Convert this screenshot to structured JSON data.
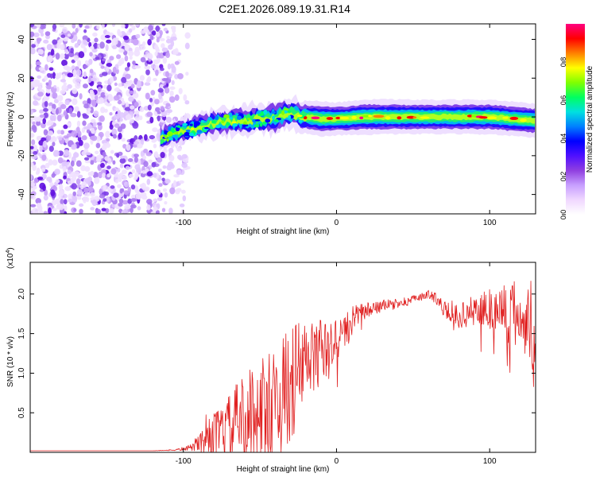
{
  "title": "C2E1.2026.089.19.31.R14",
  "chart_data": [
    {
      "type": "heatmap",
      "name": "spectrogram",
      "xlabel": "Height of straight line (km)",
      "ylabel": "Frequency (Hz)",
      "xlim": [
        -200,
        130
      ],
      "ylim": [
        -50,
        48
      ],
      "xticks": [
        -100,
        0,
        100
      ],
      "xtick_labels": [
        "-100",
        "0",
        "100"
      ],
      "yticks": [
        40,
        20,
        0,
        -20,
        -40
      ],
      "ytick_labels": [
        "40",
        "20",
        "0",
        "-20",
        "-40"
      ],
      "noise_region": [
        -200,
        -97
      ],
      "signal_track": {
        "x": [
          -115,
          -100,
          -80,
          -60,
          -40,
          -30,
          -20,
          -10,
          0,
          20,
          60,
          100,
          130
        ],
        "frequency": [
          -11,
          -7,
          -3,
          -2,
          0,
          2,
          0,
          -1,
          -1,
          0,
          0,
          0,
          -2
        ],
        "relative_amplitude": [
          0.35,
          0.4,
          0.45,
          0.5,
          0.55,
          0.6,
          0.75,
          0.85,
          0.75,
          0.85,
          0.8,
          0.82,
          0.8
        ]
      },
      "colorbar": {
        "label": "Normalized spectral amplitude",
        "range": [
          0,
          1
        ],
        "ticks": [
          0.0,
          0.2,
          0.4,
          0.6,
          0.8
        ],
        "tick_labels": [
          "0.0",
          "0.2",
          "0.4",
          "0.6",
          "0.8"
        ],
        "colors": [
          "#ffffff",
          "#f0d8ff",
          "#c8a0ff",
          "#9040e0",
          "#5010ff",
          "#0000ff",
          "#0080ff",
          "#00e0e0",
          "#00ff60",
          "#80ff00",
          "#ffff00",
          "#ff8000",
          "#ff0000",
          "#ff0080"
        ]
      }
    },
    {
      "type": "line",
      "name": "snr",
      "xlabel": "Height of straight line (km)",
      "ylabel": "SNR (10 * v/v)",
      "scale_label_base": "(x10",
      "scale_label_exp": "4",
      "scale_label_close": ")",
      "xlim": [
        -200,
        130
      ],
      "ylim": [
        0,
        2.4
      ],
      "xticks": [
        -100,
        0,
        100
      ],
      "xtick_labels": [
        "-100",
        "0",
        "100"
      ],
      "yticks": [
        0.5,
        1.0,
        1.5,
        2.0
      ],
      "ytick_labels": [
        "0.5",
        "1.0",
        "1.5",
        "2.0"
      ],
      "color": "#e02020",
      "series": [
        {
          "name": "SNR",
          "x": [
            -200,
            -120,
            -105,
            -95,
            -90,
            -85,
            -80,
            -75,
            -70,
            -65,
            -60,
            -55,
            -50,
            -45,
            -40,
            -35,
            -30,
            -25,
            -20,
            -15,
            -10,
            -5,
            0,
            5,
            10,
            15,
            20,
            25,
            30,
            35,
            40,
            45,
            50,
            55,
            60,
            65,
            70,
            75,
            80,
            85,
            90,
            95,
            100,
            105,
            110,
            115,
            120,
            125,
            130
          ],
          "y": [
            0.02,
            0.02,
            0.03,
            0.06,
            0.12,
            0.18,
            0.22,
            0.26,
            0.32,
            0.4,
            0.45,
            0.5,
            0.55,
            0.58,
            0.62,
            0.72,
            0.85,
            1.0,
            1.1,
            1.2,
            1.3,
            1.25,
            1.45,
            1.5,
            1.65,
            1.75,
            1.8,
            1.82,
            1.85,
            1.86,
            1.88,
            1.9,
            1.93,
            1.96,
            2.0,
            1.95,
            1.82,
            1.75,
            1.72,
            1.75,
            1.8,
            1.8,
            1.82,
            1.78,
            1.8,
            1.72,
            1.75,
            1.65,
            1.55
          ],
          "noise_amplitude": [
            0.0,
            0.0,
            0.01,
            0.04,
            0.12,
            0.22,
            0.28,
            0.34,
            0.4,
            0.48,
            0.55,
            0.6,
            0.65,
            0.7,
            0.72,
            0.75,
            0.75,
            0.7,
            0.6,
            0.5,
            0.4,
            0.35,
            0.3,
            0.25,
            0.2,
            0.12,
            0.1,
            0.08,
            0.08,
            0.07,
            0.06,
            0.06,
            0.05,
            0.05,
            0.05,
            0.08,
            0.1,
            0.12,
            0.15,
            0.18,
            0.2,
            0.25,
            0.3,
            0.35,
            0.4,
            0.45,
            0.5,
            0.6,
            0.65
          ]
        }
      ]
    }
  ]
}
